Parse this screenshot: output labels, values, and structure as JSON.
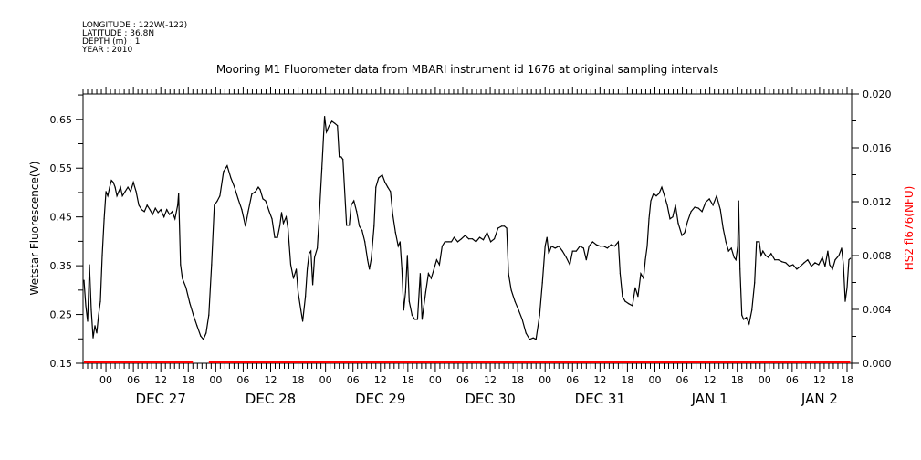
{
  "meta_lines": [
    "LONGITUDE : 122W(-122)",
    "LATITUDE : 36.8N",
    "DEPTH (m) : 1",
    "YEAR : 2010"
  ],
  "chart_data": {
    "type": "line",
    "title": "Mooring M1 Fluorometer data from MBARI instrument id 1676 at original sampling intervals",
    "xlabel": "",
    "x_units": "hours since DEC 27 00:00 (2010)",
    "xlim": [
      -5,
      163
    ],
    "hour_tick_labels": [
      "00",
      "06",
      "12",
      "18"
    ],
    "date_labels": [
      "DEC 27",
      "DEC 28",
      "DEC 29",
      "DEC 30",
      "DEC 31",
      "JAN  1",
      "JAN  2"
    ],
    "left_axis": {
      "label": "Wetstar Fluorescence(V)",
      "ylim": [
        0.15,
        0.702
      ],
      "ticks": [
        "0.15",
        "0.25",
        "0.35",
        "0.45",
        "0.55",
        "0.65"
      ]
    },
    "right_axis": {
      "label": "HS2 fl676(NFU)",
      "ylim": [
        0,
        0.02
      ],
      "ticks": [
        "0.000",
        "0.004",
        "0.008",
        "0.012",
        "0.016",
        "0.020"
      ],
      "color": "#ff0000"
    },
    "grid": false,
    "series": [
      {
        "name": "Wetstar Fluorescence(V)",
        "axis": "left",
        "color": "#000000",
        "x": [
          -4.8,
          -4.4,
          -4.0,
          -3.6,
          -3.2,
          -2.8,
          -2.4,
          -2.0,
          -1.6,
          -1.2,
          -0.8,
          -0.4,
          0,
          0.4,
          0.8,
          1.2,
          1.6,
          2.0,
          2.4,
          2.8,
          3.2,
          3.6,
          4.2,
          4.8,
          5.4,
          6.0,
          6.6,
          7.2,
          7.8,
          8.4,
          9.0,
          9.6,
          10.2,
          10.8,
          11.4,
          12.0,
          12.7,
          13.3,
          13.9,
          14.5,
          15.1,
          15.7,
          15.9,
          16.3,
          16.7,
          17.5,
          18.3,
          19.1,
          19.9,
          20.7,
          21.3,
          21.9,
          22.5,
          23.1,
          23.7,
          24.3,
          24.9,
          25.7,
          26.5,
          27.3,
          28.1,
          28.9,
          29.7,
          30.5,
          31.1,
          31.9,
          32.7,
          33.3,
          33.7,
          34.3,
          34.9,
          35.7,
          36.3,
          36.9,
          37.5,
          38.0,
          38.4,
          38.8,
          39.4,
          39.8,
          40.4,
          41.0,
          41.6,
          42.0,
          42.6,
          43.0,
          43.6,
          44.0,
          44.4,
          44.8,
          45.2,
          45.6,
          46.2,
          46.6,
          47.2,
          47.8,
          48.2,
          48.8,
          49.4,
          50.0,
          50.6,
          51.0,
          51.4,
          51.8,
          52.6,
          53.2,
          53.6,
          54.2,
          54.8,
          55.4,
          56.0,
          56.6,
          57.2,
          57.6,
          58.0,
          58.6,
          59.0,
          59.6,
          60.4,
          61.0,
          61.6,
          62.2,
          62.7,
          63.3,
          63.9,
          64.3,
          64.7,
          65.1,
          65.5,
          65.9,
          66.3,
          66.9,
          67.5,
          68.1,
          68.7,
          69.1,
          69.5,
          69.9,
          70.5,
          71.1,
          71.7,
          72.3,
          72.9,
          73.5,
          74.1,
          74.9,
          75.5,
          76.1,
          76.9,
          77.7,
          78.5,
          79.3,
          80.1,
          80.9,
          81.7,
          82.5,
          83.3,
          84.1,
          84.9,
          85.7,
          86.5,
          87.1,
          87.6,
          88.0,
          88.6,
          89.4,
          90.2,
          91.0,
          91.8,
          92.6,
          93.4,
          94.0,
          94.8,
          95.4,
          96.0,
          96.4,
          96.8,
          97.4,
          98.2,
          99.0,
          99.8,
          100.6,
          101.4,
          102.0,
          102.8,
          103.6,
          104.4,
          105.0,
          105.6,
          106.4,
          107.2,
          108.0,
          108.8,
          109.6,
          110.4,
          111.2,
          112.0,
          112.4,
          112.9,
          113.5,
          114.3,
          115.1,
          115.7,
          116.3,
          116.9,
          117.5,
          117.9,
          118.3,
          118.7,
          119.1,
          119.7,
          120.3,
          120.9,
          121.5,
          122.1,
          122.7,
          123.3,
          123.9,
          124.5,
          125.1,
          125.9,
          126.5,
          127.1,
          127.9,
          128.7,
          129.5,
          130.3,
          131.1,
          131.9,
          132.7,
          133.5,
          134.3,
          134.9,
          135.5,
          136.1,
          136.7,
          137.3,
          137.7,
          138.1,
          138.3,
          138.6,
          139.0,
          139.4,
          140.0,
          140.6,
          141.2,
          141.8,
          142.2,
          142.8,
          143.2,
          143.6,
          144.2,
          144.8,
          145.4,
          146.2,
          147.0,
          147.8,
          148.6,
          149.4,
          150.2,
          151.0,
          151.8,
          152.6,
          153.4,
          154.2,
          155.0,
          155.8,
          156.6,
          157.2,
          157.8,
          158.2,
          158.8,
          159.4,
          160.2,
          160.8,
          161.2,
          161.6,
          162.0,
          162.4,
          162.7
        ],
        "y": [
          0.32,
          0.268,
          0.236,
          0.352,
          0.259,
          0.202,
          0.227,
          0.212,
          0.249,
          0.277,
          0.371,
          0.446,
          0.502,
          0.493,
          0.511,
          0.525,
          0.521,
          0.511,
          0.493,
          0.502,
          0.511,
          0.493,
          0.502,
          0.511,
          0.502,
          0.521,
          0.502,
          0.474,
          0.465,
          0.461,
          0.474,
          0.465,
          0.455,
          0.468,
          0.459,
          0.465,
          0.45,
          0.465,
          0.455,
          0.461,
          0.446,
          0.474,
          0.498,
          0.352,
          0.324,
          0.305,
          0.274,
          0.249,
          0.227,
          0.206,
          0.199,
          0.212,
          0.249,
          0.352,
          0.474,
          0.482,
          0.493,
          0.543,
          0.555,
          0.53,
          0.511,
          0.487,
          0.465,
          0.431,
          0.461,
          0.497,
          0.502,
          0.511,
          0.506,
          0.487,
          0.483,
          0.461,
          0.446,
          0.408,
          0.408,
          0.431,
          0.459,
          0.437,
          0.45,
          0.427,
          0.352,
          0.324,
          0.343,
          0.296,
          0.259,
          0.236,
          0.287,
          0.343,
          0.375,
          0.38,
          0.311,
          0.367,
          0.386,
          0.446,
          0.549,
          0.656,
          0.624,
          0.637,
          0.646,
          0.642,
          0.637,
          0.573,
          0.573,
          0.568,
          0.433,
          0.433,
          0.474,
          0.483,
          0.461,
          0.431,
          0.422,
          0.399,
          0.362,
          0.343,
          0.365,
          0.431,
          0.511,
          0.53,
          0.536,
          0.521,
          0.511,
          0.502,
          0.455,
          0.418,
          0.39,
          0.399,
          0.343,
          0.259,
          0.296,
          0.371,
          0.277,
          0.249,
          0.24,
          0.24,
          0.334,
          0.24,
          0.268,
          0.296,
          0.334,
          0.324,
          0.343,
          0.362,
          0.352,
          0.39,
          0.399,
          0.399,
          0.399,
          0.408,
          0.399,
          0.405,
          0.412,
          0.405,
          0.405,
          0.399,
          0.408,
          0.403,
          0.418,
          0.399,
          0.405,
          0.427,
          0.431,
          0.431,
          0.427,
          0.334,
          0.3,
          0.277,
          0.259,
          0.24,
          0.212,
          0.199,
          0.202,
          0.199,
          0.249,
          0.315,
          0.39,
          0.408,
          0.375,
          0.39,
          0.386,
          0.39,
          0.38,
          0.367,
          0.352,
          0.38,
          0.38,
          0.39,
          0.386,
          0.362,
          0.39,
          0.399,
          0.393,
          0.39,
          0.39,
          0.386,
          0.393,
          0.39,
          0.399,
          0.334,
          0.287,
          0.277,
          0.272,
          0.268,
          0.305,
          0.287,
          0.334,
          0.324,
          0.362,
          0.39,
          0.446,
          0.483,
          0.498,
          0.493,
          0.498,
          0.511,
          0.493,
          0.474,
          0.446,
          0.45,
          0.474,
          0.437,
          0.412,
          0.418,
          0.44,
          0.461,
          0.47,
          0.468,
          0.461,
          0.48,
          0.487,
          0.474,
          0.493,
          0.465,
          0.427,
          0.399,
          0.38,
          0.386,
          0.367,
          0.362,
          0.39,
          0.483,
          0.343,
          0.249,
          0.24,
          0.244,
          0.231,
          0.259,
          0.315,
          0.399,
          0.399,
          0.371,
          0.38,
          0.371,
          0.367,
          0.375,
          0.362,
          0.362,
          0.358,
          0.356,
          0.349,
          0.352,
          0.343,
          0.349,
          0.356,
          0.362,
          0.349,
          0.356,
          0.352,
          0.367,
          0.349,
          0.38,
          0.352,
          0.343,
          0.362,
          0.371,
          0.386,
          0.352,
          0.277,
          0.305,
          0.362,
          0.365
        ]
      },
      {
        "name": "HS2 fl676(NFU)",
        "axis": "right",
        "color": "#ff0000",
        "segments": [
          {
            "x": [
              -4.8,
              19.0
            ],
            "y": [
              0.0,
              0.0
            ]
          },
          {
            "x": [
              22.5,
              162.7
            ],
            "y": [
              0.0,
              0.0
            ]
          }
        ]
      }
    ]
  }
}
